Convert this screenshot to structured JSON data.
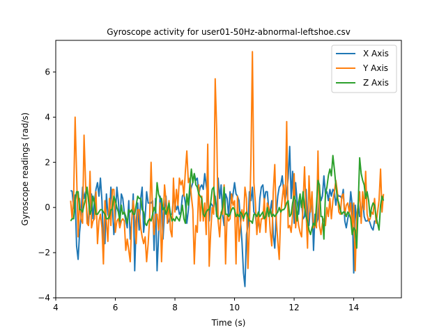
{
  "chart_data": {
    "type": "line",
    "title": "Gyroscope activity for user01-50Hz-abnormal-leftshoe.csv",
    "xlabel": "Time (s)",
    "ylabel": "Gyroscope readings (rad/s)",
    "xlim": [
      4.0,
      15.6
    ],
    "ylim": [
      -4.0,
      7.4
    ],
    "xticks": [
      4,
      6,
      8,
      10,
      12,
      14
    ],
    "yticks": [
      -4,
      -2,
      0,
      2,
      4,
      6
    ],
    "grid": false,
    "legend_position": "top-right",
    "x_start": 4.5,
    "x_step": 0.05,
    "series": [
      {
        "name": "X Axis",
        "color": "#1f77b4",
        "values": [
          0.75,
          0.72,
          -0.05,
          0.55,
          -1.7,
          -2.3,
          -1.1,
          -0.4,
          0.9,
          0.4,
          0.7,
          -0.3,
          -0.8,
          0.2,
          0.6,
          -0.5,
          0.3,
          0.8,
          1.1,
          0.5,
          1.3,
          0.3,
          -1.6,
          -1.6,
          0.6,
          -0.3,
          -0.5,
          0.9,
          0.1,
          -1.2,
          -0.4,
          0.9,
          0.3,
          -0.7,
          0.6,
          0.4,
          -0.2,
          -0.6,
          -0.9,
          0.3,
          -1.4,
          -0.6,
          0.6,
          -2.8,
          -0.7,
          0.2,
          -1.0,
          0.4,
          0.9,
          -1.1,
          -0.4,
          0.7,
          0.2,
          0.2,
          0.2,
          0.3,
          -1.9,
          0.4,
          -2.8,
          -1.3,
          0.5,
          0.1,
          -1.4,
          -0.2,
          0.5,
          -0.7,
          -0.6,
          -0.3,
          -0.3,
          0.4,
          0.2,
          -0.1,
          0.1,
          -0.3,
          -0.2,
          0.5,
          0.6,
          0.2,
          -0.7,
          -0.1,
          0.6,
          0.9,
          1.1,
          1.5,
          1.2,
          1.3,
          0.6,
          0.9,
          1.0,
          0.8,
          1.5,
          1.0,
          0.5,
          -0.6,
          0.2,
          0.1,
          0.0,
          0.5,
          -0.4,
          1.3,
          0.4,
          1.0,
          -0.3,
          -0.8,
          0.6,
          0.4,
          -0.4,
          0.7,
          0.2,
          0.6,
          1.1,
          0.6,
          0.5,
          0.3,
          -0.6,
          -1.5,
          -2.9,
          -3.5,
          -1.2,
          -0.8,
          0.7,
          0.3,
          0.9,
          -0.2,
          -0.3,
          -1.0,
          -0.7,
          0.4,
          0.9,
          1.0,
          0.3,
          0.7,
          0.7,
          -0.1,
          -0.1,
          0.3,
          -1.2,
          -1.8,
          -0.3,
          0.5,
          0.9,
          1.0,
          1.4,
          0.7,
          0.3,
          0.7,
          1.3,
          2.7,
          0.4,
          1.6,
          -0.7,
          1.1,
          0.3,
          -0.3,
          0.3,
          0.2,
          -0.5,
          -0.4,
          0.8,
          -0.6,
          -0.8,
          0.2,
          0.4,
          -1.9,
          -0.3,
          -0.7,
          -0.5,
          0.8,
          0.3,
          0.5,
          1.4,
          0.6,
          0.7,
          0.3,
          0.8,
          0.5,
          0.8,
          0.7,
          0.1,
          0.6,
          0.5,
          0.5,
          0.4,
          0.8,
          -0.6,
          -0.9,
          -0.5,
          -0.2,
          0.7,
          0.1,
          -2.9,
          0.1,
          -0.6,
          0.2,
          -0.4,
          -0.3,
          0.4,
          -0.4,
          -0.6,
          -0.6,
          -0.5,
          -0.7,
          -0.9,
          -1.0,
          -0.6,
          -0.6
        ],
        "step_var": 0.05
      },
      {
        "name": "Y Axis",
        "color": "#ff7f0e",
        "values": [
          0.3,
          -0.5,
          0.5,
          4.0,
          1.5,
          -1.3,
          0.4,
          -0.5,
          -0.7,
          3.2,
          1.1,
          -0.7,
          -0.8,
          1.6,
          -0.9,
          -0.6,
          -0.5,
          0.7,
          -1.6,
          -0.6,
          -0.3,
          -0.9,
          -2.5,
          0.3,
          -0.6,
          -1.5,
          0.4,
          -0.8,
          0.8,
          0.8,
          -1.1,
          -0.6,
          -0.5,
          -0.9,
          -0.6,
          -0.5,
          -0.6,
          -1.9,
          -1.4,
          -1.9,
          -2.4,
          -0.6,
          0.3,
          -0.4,
          -1.6,
          -0.1,
          -0.1,
          -0.9,
          -1.3,
          -1.6,
          -1.3,
          -2.4,
          -1.6,
          -0.5,
          2.0,
          -0.3,
          -1.2,
          -0.3,
          -0.3,
          -1.0,
          0.2,
          -2.4,
          -0.7,
          1.0,
          0.3,
          -0.7,
          0.3,
          -1.0,
          -1.3,
          1.3,
          -0.2,
          0.8,
          0.1,
          1.3,
          1.0,
          1.2,
          0.5,
          1.6,
          2.5,
          1.1,
          1.3,
          0.5,
          -0.1,
          -2.5,
          -0.8,
          -1.1,
          1.0,
          -0.6,
          0.5,
          -0.6,
          0.2,
          -1.2,
          2.8,
          -2.6,
          -1.1,
          0.0,
          -0.3,
          5.7,
          3.5,
          -0.6,
          -1.3,
          -0.2,
          -0.3,
          1.0,
          -2.5,
          -0.3,
          -0.6,
          -0.5,
          0.6,
          0.1,
          0.3,
          -2.5,
          0.5,
          -1.5,
          -0.8,
          -0.1,
          -0.6,
          0.9,
          0.4,
          -2.7,
          -0.8,
          2.1,
          6.9,
          1.1,
          0.2,
          -1.2,
          -0.2,
          -1.1,
          -0.5,
          -0.5,
          0.4,
          -1.1,
          0.2,
          0.0,
          -1.1,
          -1.7,
          0.7,
          1.9,
          -0.5,
          -1.5,
          -2.3,
          -0.3,
          0.4,
          1.0,
          0.0,
          3.8,
          -0.9,
          -0.8,
          -1.1,
          -0.3,
          1.5,
          -0.9,
          -0.2,
          -0.8,
          -1.1,
          -1.3,
          0.2,
          1.8,
          -0.2,
          -1.8,
          1.4,
          -0.2,
          0.7,
          -0.9,
          -0.7,
          -0.9,
          2.5,
          -0.8,
          -1.2,
          -0.7,
          -0.5,
          -0.8,
          0.0,
          -0.4,
          0.4,
          -0.5,
          0.3,
          0.7,
          1.2,
          0.7,
          -0.2,
          -0.3,
          0.5,
          0.6,
          -0.3,
          0.1,
          0.2,
          -0.2,
          0.2,
          -1.1,
          0.2,
          -2.8,
          -0.4,
          0.1,
          0.7,
          -0.7,
          0.7,
          -0.1,
          1.6,
          -0.3,
          -0.6,
          -0.5,
          -0.2,
          -0.3,
          0.4,
          -0.7,
          -0.2,
          0.3,
          1.7,
          -0.2,
          0.6
        ],
        "step_var": 0.05
      },
      {
        "name": "Z Axis",
        "color": "#2ca02c",
        "values": [
          -0.6,
          -0.5,
          -0.5,
          0.3,
          0.7,
          0.7,
          -0.1,
          -0.1,
          -0.2,
          0.1,
          0.4,
          0.9,
          0.3,
          -0.3,
          -0.1,
          0.5,
          0.2,
          -0.3,
          -0.3,
          -0.2,
          -0.1,
          -0.1,
          -0.2,
          -0.3,
          -0.5,
          -0.5,
          -0.4,
          -0.1,
          -0.1,
          0.5,
          0.3,
          0.0,
          -0.2,
          -0.6,
          0.1,
          -0.3,
          -0.2,
          -0.4,
          -0.7,
          -0.1,
          -0.2,
          -0.1,
          -0.3,
          -0.3,
          0.1,
          0.5,
          0.4,
          0.4,
          -0.1,
          -0.2,
          -0.7,
          -0.8,
          -0.6,
          -0.5,
          -0.6,
          -0.3,
          0.0,
          -0.2,
          1.1,
          0.6,
          0.4,
          0.4,
          -0.1,
          0.0,
          -0.3,
          -0.1,
          0.2,
          -0.3,
          -0.6,
          -0.5,
          -0.6,
          -0.4,
          -0.5,
          -0.6,
          -0.3,
          0.1,
          -0.5,
          -0.7,
          0.6,
          0.1,
          1.0,
          1.7,
          1.1,
          1.5,
          1.0,
          0.9,
          0.6,
          0.5,
          0.4,
          -0.3,
          -0.4,
          -0.2,
          -0.1,
          -0.1,
          0.2,
          0.8,
          0.9,
          0.3,
          -0.3,
          -0.5,
          -0.5,
          -0.3,
          0.0,
          0.9,
          -0.3,
          -0.3,
          -0.4,
          -0.3,
          -0.1,
          0.0,
          -0.1,
          -0.4,
          -0.3,
          -0.4,
          -0.2,
          -0.3,
          -0.5,
          -0.3,
          -0.2,
          -0.4,
          -0.6,
          -0.6,
          -0.7,
          -0.3,
          -0.3,
          -0.4,
          -0.2,
          -0.4,
          -0.3,
          -0.2,
          -0.5,
          -0.4,
          0.0,
          -0.4,
          -0.1,
          -0.4,
          -0.3,
          -0.4,
          -0.3,
          -0.2,
          0.0,
          -0.2,
          -0.1,
          -0.1,
          0.0,
          0.2,
          0.3,
          -0.4,
          -0.3,
          0.2,
          0.5,
          0.3,
          -0.6,
          0.2,
          0.6,
          0.0,
          0.7,
          0.0,
          -0.4,
          -0.6,
          -1.0,
          -1.2,
          -0.9,
          -0.7,
          -0.8,
          0.1,
          1.2,
          1.0,
          -0.4,
          -0.4,
          -1.4,
          0.6,
          0.9,
          1.4,
          1.7,
          1.4,
          2.3,
          1.7,
          1.0,
          0.4,
          0.2,
          -0.1,
          -0.3,
          -0.2,
          -0.2,
          -0.4,
          -0.2,
          -0.3,
          -0.5,
          -1.2,
          -0.9,
          -1.0,
          -1.8,
          0.1,
          2.2,
          1.5,
          1.2,
          1.0,
          0.4,
          0.7,
          0.3,
          -0.4,
          0.0,
          0.2,
          0.1,
          -0.4,
          -0.7,
          -1.0,
          0.1,
          0.5,
          0.3
        ],
        "step_var": 0.05
      }
    ]
  }
}
